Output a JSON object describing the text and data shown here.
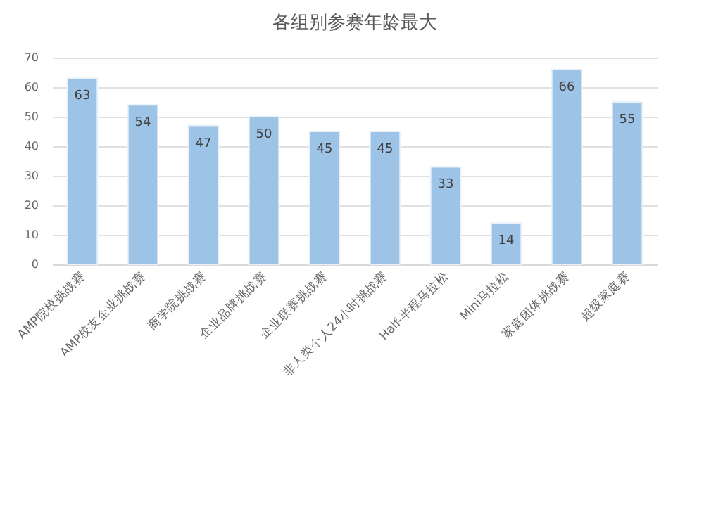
{
  "chart_data": {
    "type": "bar",
    "title": "各组别参赛年龄最大",
    "categories": [
      "AMP院校挑战赛",
      "AMP校友企业挑战赛",
      "商学院挑战赛",
      "企业品牌挑战赛",
      "企业联赛挑战赛",
      "非人类个人24小时挑战赛",
      "Half-半程马拉松",
      "Mini马拉松",
      "家庭团体挑战赛",
      "超级家庭赛"
    ],
    "values": [
      63,
      54,
      47,
      50,
      45,
      45,
      33,
      14,
      66,
      55
    ],
    "color": "#9dc3e6",
    "ylim": [
      0,
      70
    ],
    "yticks": [
      0,
      10,
      20,
      30,
      40,
      50,
      60,
      70
    ],
    "grid": "y",
    "data_labels": true
  }
}
